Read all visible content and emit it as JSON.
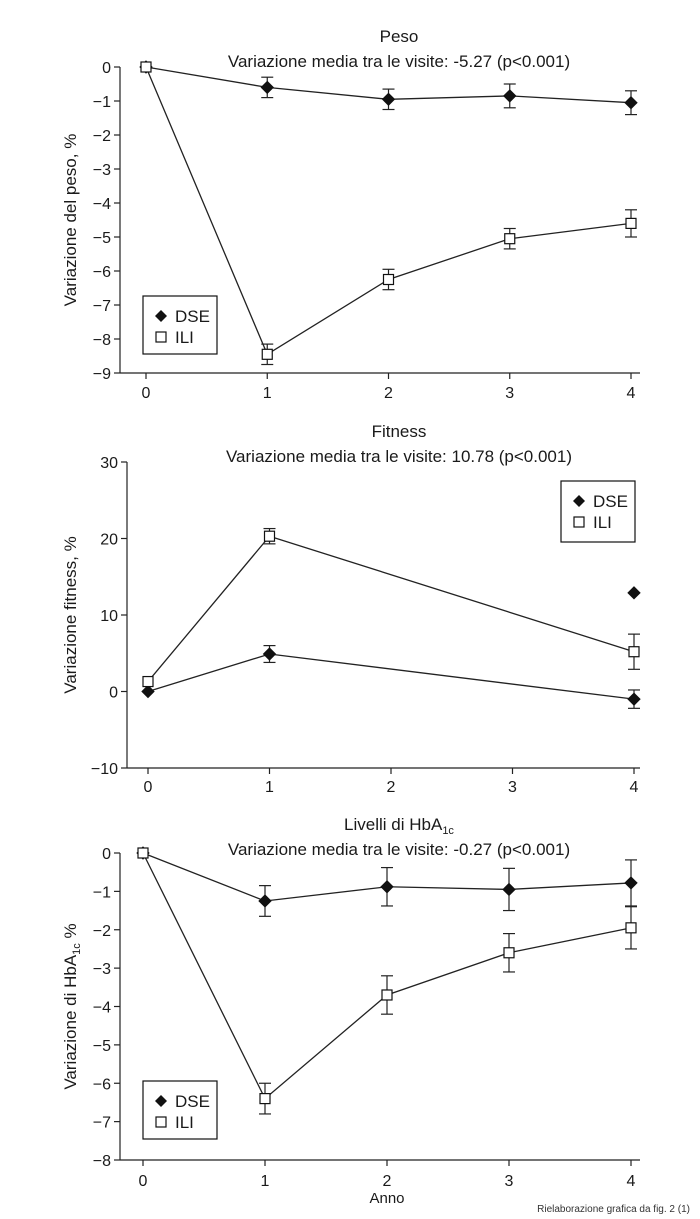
{
  "chart_data": [
    {
      "type": "line",
      "title": "Peso",
      "subtitle": "Variazione media tra le visite: -5.27 (p<0.001)",
      "ylabel": "Variazione del peso, %",
      "xlabel": "",
      "x": [
        0,
        1,
        2,
        3,
        4
      ],
      "xticks": [
        "0",
        "1",
        "2",
        "3",
        "4"
      ],
      "ylim": [
        -9,
        0
      ],
      "yticks": [
        0,
        -1,
        -2,
        -3,
        -4,
        -5,
        -6,
        -7,
        -8,
        -9
      ],
      "grid": false,
      "legend_position": "bottom-left",
      "series": [
        {
          "name": "DSE",
          "marker": "filled-diamond",
          "connected": true,
          "x": [
            0,
            1,
            2,
            3,
            4
          ],
          "values": [
            0,
            -0.6,
            -0.95,
            -0.85,
            -1.05
          ],
          "err": [
            0.05,
            0.3,
            0.3,
            0.35,
            0.35
          ]
        },
        {
          "name": "ILI",
          "marker": "open-square",
          "connected": true,
          "x": [
            0,
            1,
            2,
            3,
            4
          ],
          "values": [
            0,
            -8.45,
            -6.25,
            -5.05,
            -4.6
          ],
          "err": [
            0.05,
            0.3,
            0.3,
            0.3,
            0.4
          ]
        }
      ]
    },
    {
      "type": "line",
      "title": "Fitness",
      "subtitle": "Variazione media tra le visite: 10.78 (p<0.001)",
      "ylabel": "Variazione fitness, %",
      "xlabel": "",
      "x": [
        0,
        1,
        2,
        3,
        4
      ],
      "xticks": [
        "0",
        "1",
        "2",
        "3",
        "4"
      ],
      "ylim": [
        -10,
        30
      ],
      "yticks": [
        30,
        20,
        10,
        0,
        -10
      ],
      "ytick_labels": [
        "30",
        "20",
        "10",
        "0",
        "−10"
      ],
      "grid": false,
      "legend_position": "top-right",
      "series": [
        {
          "name": "DSE",
          "marker": "filled-diamond",
          "connected": true,
          "x": [
            0,
            1,
            4
          ],
          "values": [
            0,
            4.9,
            -1.0
          ],
          "err": [
            0,
            1.1,
            1.2
          ]
        },
        {
          "name": "ILI",
          "marker": "open-square",
          "connected": true,
          "x": [
            0,
            1,
            4
          ],
          "values": [
            1.3,
            20.3,
            5.2
          ],
          "err": [
            0,
            1.0,
            2.3
          ]
        },
        {
          "name": "",
          "marker": "filled-diamond",
          "connected": false,
          "x": [
            4
          ],
          "values": [
            12.9
          ],
          "err": [
            0
          ]
        }
      ]
    },
    {
      "type": "line",
      "title": "Livelli di HbA",
      "title_sub": "1c",
      "subtitle": "Variazione media  tra le visite: -0.27 (p<0.001)",
      "ylabel": "Variazione di HbA",
      "ylabel_sub": "1c",
      "ylabel_suffix": " %",
      "xlabel": "Anno",
      "x": [
        0,
        1,
        2,
        3,
        4
      ],
      "xticks": [
        "0",
        "1",
        "2",
        "3",
        "4"
      ],
      "ylim": [
        -8,
        0
      ],
      "yticks": [
        0,
        -1,
        -2,
        -3,
        -4,
        -5,
        -6,
        -7,
        -8
      ],
      "grid": false,
      "legend_position": "bottom-left",
      "series": [
        {
          "name": "DSE",
          "marker": "filled-diamond",
          "connected": true,
          "x": [
            0,
            1,
            2,
            3,
            4
          ],
          "values": [
            0,
            -1.25,
            -0.88,
            -0.95,
            -0.78
          ],
          "err": [
            0.05,
            0.4,
            0.5,
            0.55,
            0.6
          ]
        },
        {
          "name": "ILI",
          "marker": "open-square",
          "connected": true,
          "x": [
            0,
            1,
            2,
            3,
            4
          ],
          "values": [
            0,
            -6.4,
            -3.7,
            -2.6,
            -1.95
          ],
          "err": [
            0.05,
            0.4,
            0.5,
            0.5,
            0.55
          ]
        }
      ]
    }
  ],
  "credit": "Rielaborazione grafica da fig. 2 (1)"
}
